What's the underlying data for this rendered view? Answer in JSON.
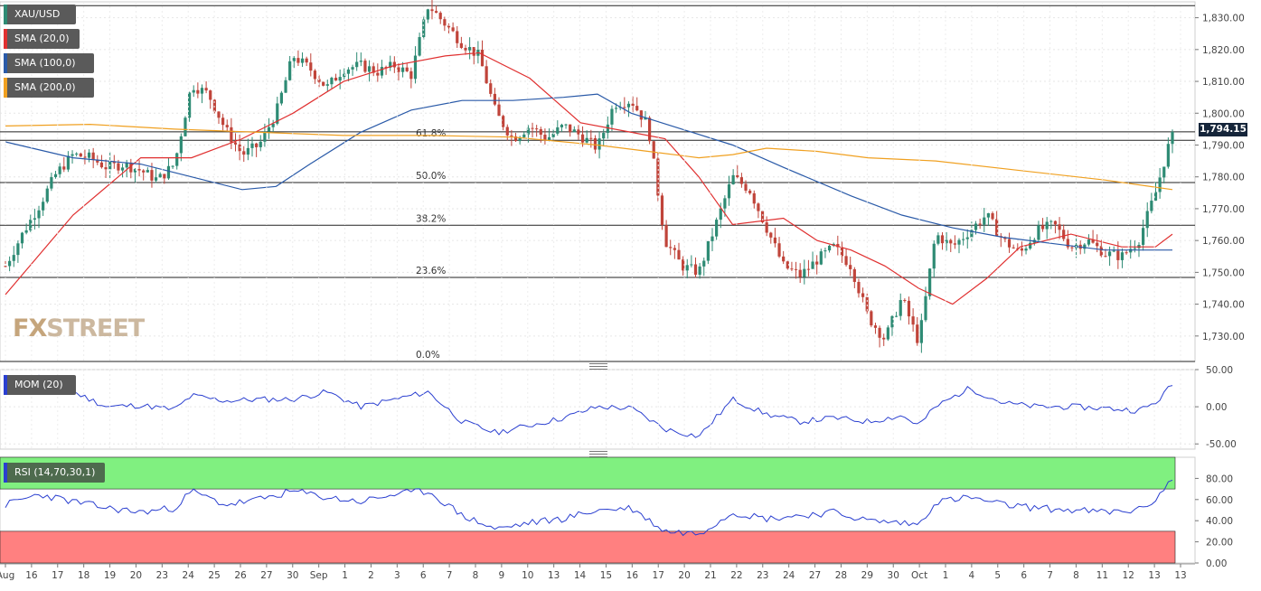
{
  "symbol": "XAU/USD",
  "legends": {
    "symbol": "XAU/USD",
    "sma20": "SMA (20,0)",
    "sma100": "SMA (100,0)",
    "sma200": "SMA (200,0)",
    "mom": "MOM (20)",
    "rsi": "RSI (14,70,30,1)"
  },
  "watermark": {
    "prefix": "FX",
    "brand": "STREET"
  },
  "colors": {
    "up_candle": "#2e8b74",
    "down_candle": "#c0443a",
    "sma20": "#e03030",
    "sma100": "#2a5aa8",
    "sma200": "#f0a020",
    "indicator_line": "#2a3fd0",
    "rsi_overbought_zone": "#80f080",
    "rsi_oversold_zone": "#ff8080",
    "price_badge": "#15253a"
  },
  "last_price": "1,794.15",
  "chart_data": {
    "type": "candlestick",
    "x_tick_labels": [
      "Aug",
      "16",
      "17",
      "18",
      "19",
      "20",
      "23",
      "24",
      "25",
      "26",
      "27",
      "30",
      "Sep",
      "1",
      "2",
      "3",
      "6",
      "7",
      "8",
      "9",
      "10",
      "13",
      "14",
      "15",
      "16",
      "17",
      "20",
      "21",
      "22",
      "23",
      "24",
      "27",
      "28",
      "29",
      "30",
      "Oct",
      "1",
      "4",
      "5",
      "6",
      "7",
      "8",
      "11",
      "12",
      "13",
      "13"
    ],
    "price_axis": {
      "ticks": [
        "1,730.00",
        "1,740.00",
        "1,750.00",
        "1,760.00",
        "1,770.00",
        "1,780.00",
        "1,790.00",
        "1,800.00",
        "1,810.00",
        "1,820.00",
        "1,830.00"
      ],
      "ylim": [
        1722,
        1835
      ]
    },
    "fibonacci": {
      "levels": [
        {
          "label": "61.8%",
          "value": 1791.5
        },
        {
          "label": "50.0%",
          "value": 1778.2
        },
        {
          "label": "38.2%",
          "value": 1764.8
        },
        {
          "label": "23.6%",
          "value": 1748.4
        },
        {
          "label": "0.0%",
          "value": 1722.0
        }
      ],
      "high": 1833.8,
      "high_line": 1794.15
    },
    "price_path": [
      [
        0,
        1752
      ],
      [
        1,
        1762
      ],
      [
        2,
        1771
      ],
      [
        3,
        1781
      ],
      [
        4,
        1787
      ],
      [
        5,
        1786
      ],
      [
        6,
        1783
      ],
      [
        7,
        1784
      ],
      [
        8,
        1782
      ],
      [
        9,
        1779
      ],
      [
        10,
        1784
      ],
      [
        11,
        1809
      ],
      [
        12,
        1806
      ],
      [
        13,
        1795
      ],
      [
        14,
        1787
      ],
      [
        15,
        1790
      ],
      [
        16,
        1800
      ],
      [
        17,
        1818
      ],
      [
        18,
        1814
      ],
      [
        19,
        1808
      ],
      [
        20,
        1814
      ],
      [
        21,
        1815
      ],
      [
        22,
        1813
      ],
      [
        23,
        1815
      ],
      [
        24,
        1812
      ],
      [
        25,
        1834
      ],
      [
        26,
        1828
      ],
      [
        27,
        1822
      ],
      [
        28,
        1818
      ],
      [
        29,
        1800
      ],
      [
        30,
        1792
      ],
      [
        31,
        1796
      ],
      [
        32,
        1792
      ],
      [
        33,
        1796
      ],
      [
        34,
        1793
      ],
      [
        35,
        1789
      ],
      [
        36,
        1803
      ],
      [
        37,
        1804
      ],
      [
        38,
        1796
      ],
      [
        39,
        1760
      ],
      [
        40,
        1752
      ],
      [
        41,
        1750
      ],
      [
        42,
        1765
      ],
      [
        43,
        1780
      ],
      [
        44,
        1776
      ],
      [
        45,
        1764
      ],
      [
        46,
        1752
      ],
      [
        47,
        1749
      ],
      [
        48,
        1754
      ],
      [
        49,
        1758
      ],
      [
        50,
        1752
      ],
      [
        51,
        1736
      ],
      [
        52,
        1729
      ],
      [
        53,
        1742
      ],
      [
        54,
        1728
      ],
      [
        55,
        1762
      ],
      [
        56,
        1758
      ],
      [
        57,
        1763
      ],
      [
        58,
        1768
      ],
      [
        59,
        1760
      ],
      [
        60,
        1756
      ],
      [
        61,
        1763
      ],
      [
        62,
        1765
      ],
      [
        63,
        1758
      ],
      [
        64,
        1760
      ],
      [
        65,
        1756
      ],
      [
        66,
        1755
      ],
      [
        67,
        1760
      ],
      [
        68,
        1775
      ],
      [
        69,
        1794.15
      ]
    ],
    "series": [
      {
        "name": "SMA (20,0)",
        "values": [
          [
            0,
            1743
          ],
          [
            4,
            1768
          ],
          [
            8,
            1786
          ],
          [
            11,
            1786
          ],
          [
            14,
            1792
          ],
          [
            17,
            1800
          ],
          [
            20,
            1810
          ],
          [
            23,
            1815
          ],
          [
            26,
            1818
          ],
          [
            28,
            1819
          ],
          [
            31,
            1811
          ],
          [
            34,
            1797
          ],
          [
            37,
            1794
          ],
          [
            39,
            1792
          ],
          [
            41,
            1780
          ],
          [
            43,
            1765
          ],
          [
            46,
            1767
          ],
          [
            48,
            1760
          ],
          [
            50,
            1757
          ],
          [
            52,
            1752
          ],
          [
            54,
            1745
          ],
          [
            56,
            1740
          ],
          [
            58,
            1748
          ],
          [
            60,
            1758
          ],
          [
            63,
            1762
          ],
          [
            66,
            1758
          ],
          [
            68,
            1758
          ],
          [
            69,
            1762
          ]
        ]
      },
      {
        "name": "SMA (100,0)",
        "values": [
          [
            0,
            1791
          ],
          [
            4,
            1786
          ],
          [
            8,
            1784
          ],
          [
            11,
            1780
          ],
          [
            14,
            1776
          ],
          [
            16,
            1777
          ],
          [
            18,
            1784
          ],
          [
            21,
            1794
          ],
          [
            24,
            1801
          ],
          [
            27,
            1804
          ],
          [
            30,
            1804
          ],
          [
            33,
            1805
          ],
          [
            35,
            1806
          ],
          [
            37,
            1800
          ],
          [
            40,
            1795
          ],
          [
            43,
            1790
          ],
          [
            46,
            1783
          ],
          [
            50,
            1774
          ],
          [
            53,
            1768
          ],
          [
            56,
            1764
          ],
          [
            59,
            1761
          ],
          [
            62,
            1759
          ],
          [
            65,
            1757
          ],
          [
            69,
            1757
          ]
        ]
      },
      {
        "name": "SMA (200,0)",
        "values": [
          [
            0,
            1796
          ],
          [
            5,
            1796.5
          ],
          [
            10,
            1795
          ],
          [
            15,
            1794
          ],
          [
            20,
            1793
          ],
          [
            25,
            1793
          ],
          [
            30,
            1792.5
          ],
          [
            35,
            1790
          ],
          [
            38,
            1788
          ],
          [
            41,
            1786
          ],
          [
            43,
            1787
          ],
          [
            45,
            1789
          ],
          [
            48,
            1788
          ],
          [
            51,
            1786
          ],
          [
            55,
            1785
          ],
          [
            60,
            1782
          ],
          [
            65,
            1779
          ],
          [
            69,
            1776
          ]
        ]
      }
    ],
    "momentum": {
      "label": "MOM (20)",
      "ticks": [
        "50.00",
        "0.00",
        "-50.00"
      ],
      "ylim": [
        -57,
        50
      ],
      "values": [
        [
          0,
          35
        ],
        [
          2,
          40
        ],
        [
          4,
          20
        ],
        [
          6,
          0
        ],
        [
          8,
          2
        ],
        [
          10,
          -4
        ],
        [
          11,
          15
        ],
        [
          13,
          8
        ],
        [
          15,
          10
        ],
        [
          17,
          10
        ],
        [
          19,
          20
        ],
        [
          21,
          0
        ],
        [
          23,
          10
        ],
        [
          25,
          20
        ],
        [
          27,
          -20
        ],
        [
          29,
          -35
        ],
        [
          31,
          -25
        ],
        [
          33,
          -15
        ],
        [
          35,
          0
        ],
        [
          37,
          -2
        ],
        [
          39,
          -30
        ],
        [
          41,
          -40
        ],
        [
          43,
          10
        ],
        [
          45,
          -10
        ],
        [
          47,
          -20
        ],
        [
          49,
          -15
        ],
        [
          51,
          -20
        ],
        [
          53,
          -12
        ],
        [
          54,
          -25
        ],
        [
          55,
          0
        ],
        [
          57,
          25
        ],
        [
          59,
          5
        ],
        [
          61,
          0
        ],
        [
          63,
          0
        ],
        [
          65,
          -2
        ],
        [
          67,
          -5
        ],
        [
          68,
          5
        ],
        [
          69,
          30
        ]
      ]
    },
    "rsi": {
      "label": "RSI (14,70,30,1)",
      "ticks": [
        "80.00",
        "60.00",
        "40.00",
        "20.00",
        "0.00"
      ],
      "ylim": [
        0,
        100
      ],
      "overbought": 70,
      "oversold": 30,
      "values": [
        [
          0,
          55
        ],
        [
          2,
          65
        ],
        [
          4,
          58
        ],
        [
          6,
          52
        ],
        [
          8,
          48
        ],
        [
          10,
          52
        ],
        [
          11,
          68
        ],
        [
          13,
          55
        ],
        [
          15,
          60
        ],
        [
          17,
          68
        ],
        [
          19,
          62
        ],
        [
          21,
          58
        ],
        [
          23,
          65
        ],
        [
          25,
          68
        ],
        [
          27,
          45
        ],
        [
          29,
          32
        ],
        [
          31,
          38
        ],
        [
          33,
          42
        ],
        [
          35,
          50
        ],
        [
          37,
          52
        ],
        [
          39,
          30
        ],
        [
          41,
          28
        ],
        [
          43,
          48
        ],
        [
          45,
          42
        ],
        [
          47,
          45
        ],
        [
          49,
          48
        ],
        [
          51,
          40
        ],
        [
          53,
          38
        ],
        [
          54,
          36
        ],
        [
          55,
          58
        ],
        [
          57,
          62
        ],
        [
          59,
          55
        ],
        [
          61,
          52
        ],
        [
          63,
          50
        ],
        [
          65,
          48
        ],
        [
          67,
          50
        ],
        [
          68,
          60
        ],
        [
          69,
          80
        ]
      ]
    }
  }
}
